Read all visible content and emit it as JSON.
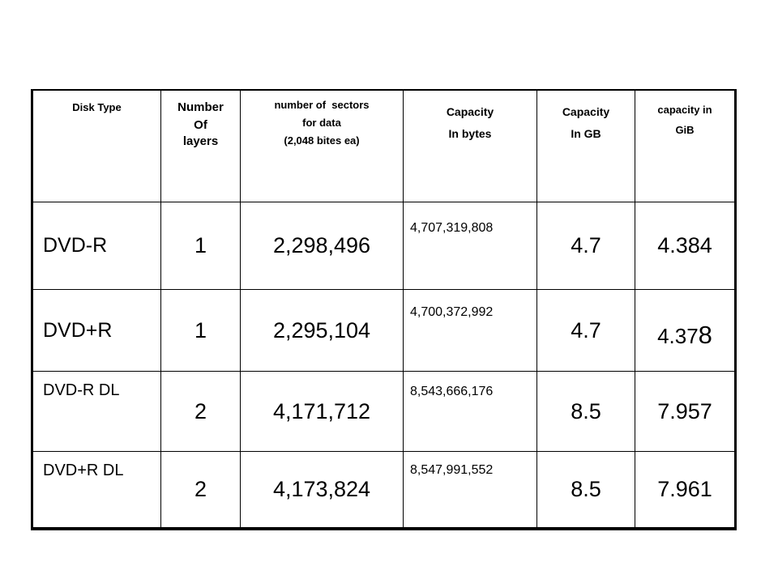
{
  "headers": {
    "disk_type": "Disk Type",
    "layers": [
      "Number",
      "Of",
      "layers"
    ],
    "sectors": [
      "number of  sectors",
      "for data",
      "(2,048 bites ea)"
    ],
    "capacity_bytes": [
      "Capacity",
      "In bytes"
    ],
    "capacity_gb": [
      "Capacity",
      "In GB"
    ],
    "capacity_gib": [
      "capacity in",
      "GiB"
    ]
  },
  "rows": [
    {
      "type": "DVD-R",
      "layers": "1",
      "sectors": "2,298,496",
      "bytes": "4,707,319,808",
      "gb": "4.7",
      "gib": "4.384"
    },
    {
      "type": "DVD+R",
      "layers": "1",
      "sectors": "2,295,104",
      "bytes": "4,700,372,992",
      "gb": "4.7",
      "gib_main": "4.37",
      "gib_last": "8"
    },
    {
      "type": "DVD-R DL",
      "layers": "2",
      "sectors": "4,171,712",
      "bytes": "8,543,666,176",
      "gb": "8.5",
      "gib": "7.957"
    },
    {
      "type": "DVD+R DL",
      "layers": "2",
      "sectors": "4,173,824",
      "bytes": "8,547,991,552",
      "gb": "8.5",
      "gib": "7.961"
    }
  ]
}
